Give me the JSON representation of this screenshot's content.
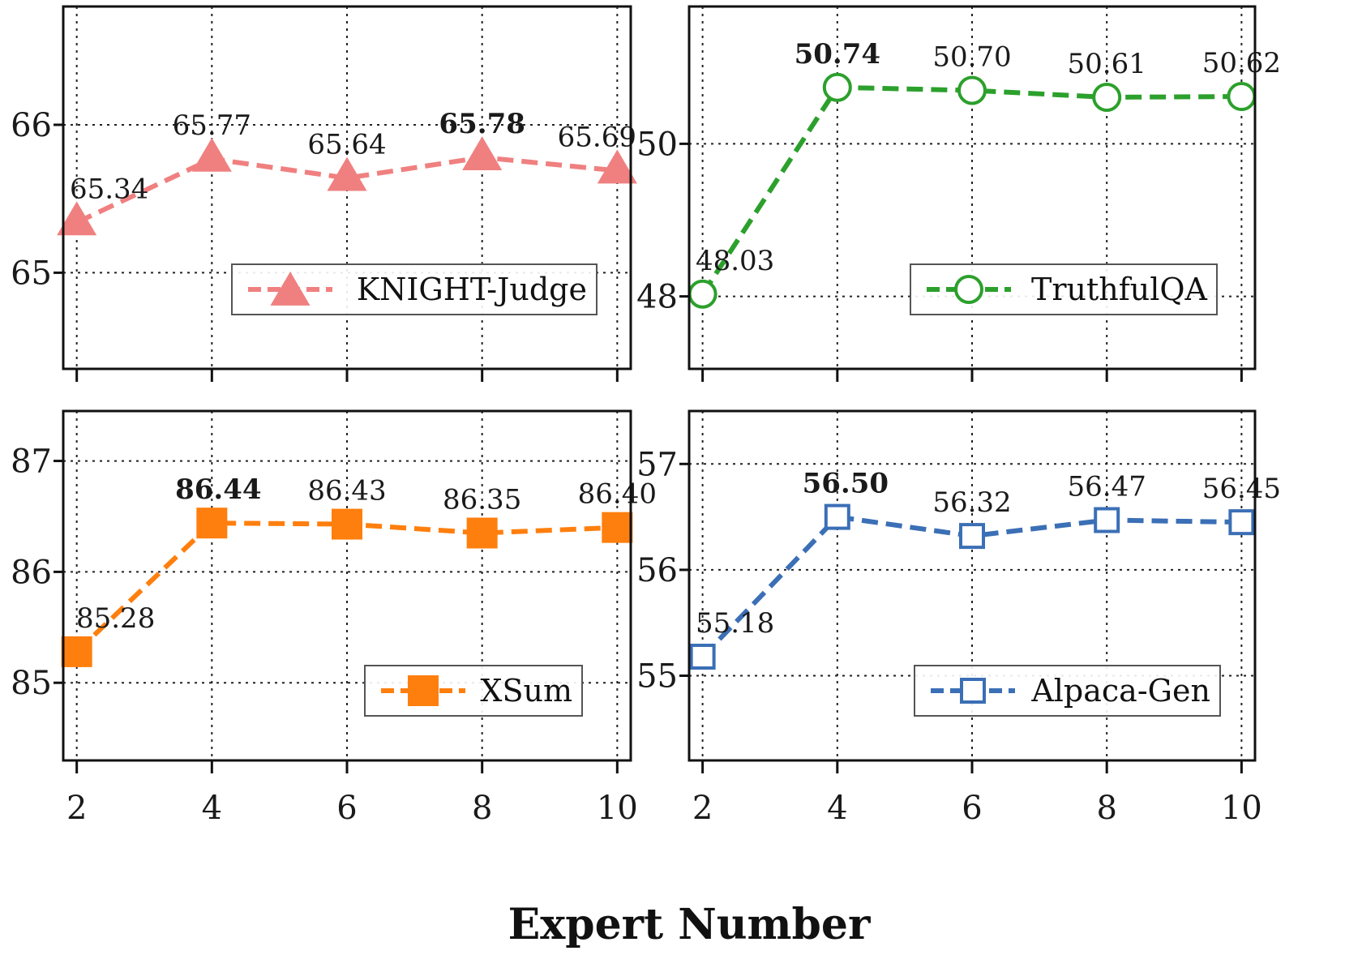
{
  "xlabel": "Expert Number",
  "chart_data": [
    {
      "type": "line",
      "series": [
        {
          "name": "KNIGHT-Judge",
          "x": [
            2,
            4,
            6,
            8,
            10
          ],
          "values": [
            65.34,
            65.77,
            65.64,
            65.78,
            65.69
          ]
        }
      ],
      "data_labels": [
        "65.34",
        "65.77",
        "65.64",
        "65.78",
        "65.69"
      ],
      "best_index": 3,
      "xlim": [
        1.8,
        10.2
      ],
      "ylim": [
        64.35,
        66.8
      ],
      "yticks": [
        65,
        66
      ],
      "xticks": [
        2,
        4,
        6,
        8,
        10
      ],
      "show_xtick_labels": false,
      "color": "#f08080",
      "marker": "triangle",
      "marker_filled": true,
      "legend_placement": "lower-right",
      "grid": true
    },
    {
      "type": "line",
      "series": [
        {
          "name": "TruthfulQA",
          "x": [
            2,
            4,
            6,
            8,
            10
          ],
          "values": [
            48.03,
            50.74,
            50.7,
            50.61,
            50.62
          ]
        }
      ],
      "data_labels": [
        "48.03",
        "50.74",
        "50.70",
        "50.61",
        "50.62"
      ],
      "best_index": 1,
      "xlim": [
        1.8,
        10.2
      ],
      "ylim": [
        47.05,
        51.8
      ],
      "yticks": [
        48,
        50
      ],
      "xticks": [
        2,
        4,
        6,
        8,
        10
      ],
      "show_xtick_labels": false,
      "color": "#2ca02c",
      "marker": "circle",
      "marker_filled": false,
      "legend_placement": "lower-right",
      "grid": true
    },
    {
      "type": "line",
      "series": [
        {
          "name": "XSum",
          "x": [
            2,
            4,
            6,
            8,
            10
          ],
          "values": [
            85.28,
            86.44,
            86.43,
            86.35,
            86.4
          ]
        }
      ],
      "data_labels": [
        "85.28",
        "86.44",
        "86.43",
        "86.35",
        "86.40"
      ],
      "best_index": 1,
      "xlim": [
        1.8,
        10.2
      ],
      "ylim": [
        84.3,
        87.45
      ],
      "yticks": [
        85,
        86,
        87
      ],
      "xticks": [
        2,
        4,
        6,
        8,
        10
      ],
      "show_xtick_labels": true,
      "color": "#ff7f0e",
      "marker": "square",
      "marker_filled": true,
      "legend_placement": "lower-right",
      "grid": true
    },
    {
      "type": "line",
      "series": [
        {
          "name": "Alpaca-Gen",
          "x": [
            2,
            4,
            6,
            8,
            10
          ],
          "values": [
            55.18,
            56.5,
            56.32,
            56.47,
            56.45
          ]
        }
      ],
      "data_labels": [
        "55.18",
        "56.50",
        "56.32",
        "56.47",
        "56.45"
      ],
      "best_index": 1,
      "xlim": [
        1.8,
        10.2
      ],
      "ylim": [
        54.2,
        57.5
      ],
      "yticks": [
        55,
        56,
        57
      ],
      "xticks": [
        2,
        4,
        6,
        8,
        10
      ],
      "show_xtick_labels": true,
      "color": "#3b6fb6",
      "marker": "square",
      "marker_filled": false,
      "legend_placement": "lower-right",
      "grid": true
    }
  ]
}
